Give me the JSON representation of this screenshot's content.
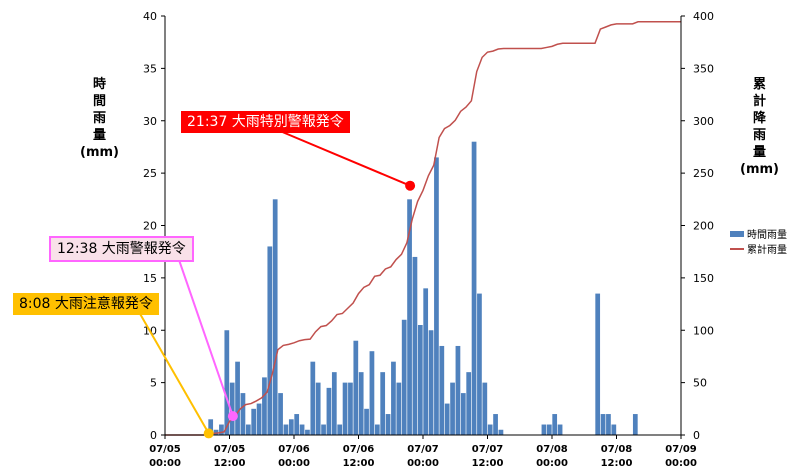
{
  "labels": {
    "left_axis": [
      "時",
      "間",
      "雨",
      "量",
      "(mm)"
    ],
    "right_axis": [
      "累",
      "計",
      "降",
      "雨",
      "量",
      "(mm)"
    ]
  },
  "legend": {
    "bar": "時間雨量",
    "line": "累計雨量"
  },
  "annotations": {
    "red": "21:37 大雨特別警報発令",
    "pink": "12:38 大雨警報発令",
    "orange": "8:08 大雨注意報発令"
  },
  "colors": {
    "bar": "#4F81BD",
    "line": "#C0504D",
    "red": "#FF0000",
    "pink": "#FF66FF",
    "orange": "#FFC000"
  },
  "chart_data": {
    "type": "bar",
    "x_ticks": [
      [
        "07/05",
        "00:00"
      ],
      [
        "07/05",
        "12:00"
      ],
      [
        "07/06",
        "00:00"
      ],
      [
        "07/06",
        "12:00"
      ],
      [
        "07/07",
        "00:00"
      ],
      [
        "07/07",
        "12:00"
      ],
      [
        "07/08",
        "00:00"
      ],
      [
        "07/08",
        "12:00"
      ],
      [
        "07/09",
        "00:00"
      ]
    ],
    "x_range_hours": [
      0,
      96
    ],
    "y_left": {
      "ylim": [
        0,
        40
      ],
      "ticks": [
        0,
        5,
        10,
        15,
        20,
        25,
        30,
        35,
        40
      ]
    },
    "y_right": {
      "ylim": [
        0,
        400
      ],
      "ticks": [
        0,
        50,
        100,
        150,
        200,
        250,
        300,
        350,
        400
      ]
    },
    "series": [
      {
        "name": "時間雨量",
        "axis": "left",
        "values": [
          0,
          0,
          0,
          0,
          0,
          0,
          0,
          0,
          1.5,
          0.5,
          1,
          10,
          5,
          7,
          4,
          1,
          2.5,
          3,
          5.5,
          18,
          22.5,
          4,
          1,
          1.5,
          2,
          1,
          0.5,
          7,
          5,
          1,
          4.5,
          6,
          1,
          5,
          5,
          9,
          6,
          2.5,
          8,
          1,
          6,
          2,
          7,
          5,
          11,
          22.5,
          17,
          10.5,
          14,
          10,
          26.5,
          8.5,
          3,
          5,
          8.5,
          4,
          6,
          28,
          13.5,
          5,
          1,
          2,
          0.5,
          0,
          0,
          0,
          0,
          0,
          0,
          0,
          1,
          1,
          2,
          1,
          0,
          0,
          0,
          0,
          0,
          0,
          13.5,
          2,
          2,
          1,
          0,
          0,
          0,
          2,
          0,
          0,
          0,
          0,
          0,
          0,
          0,
          0
        ]
      },
      {
        "name": "累計雨量",
        "axis": "right",
        "values": [
          0,
          0,
          0,
          0,
          0,
          0,
          0,
          0,
          1.5,
          2,
          3,
          13,
          18,
          25,
          29,
          30,
          32.5,
          35.5,
          41,
          59,
          81.5,
          85.5,
          86.5,
          88,
          90,
          91,
          91.5,
          98.5,
          103.5,
          104.5,
          109,
          115,
          116,
          121,
          126,
          135,
          141,
          143.5,
          151.5,
          152.5,
          158.5,
          160.5,
          167.5,
          172.5,
          183.5,
          206,
          223,
          233.5,
          247.5,
          257.5,
          284,
          292.5,
          295.5,
          300.5,
          309,
          313,
          319,
          347,
          360.5,
          365.5,
          366.5,
          368.5,
          369,
          369,
          369,
          369,
          369,
          369,
          369,
          369,
          370,
          371,
          373,
          374,
          374,
          374,
          374,
          374,
          374,
          374,
          387.5,
          389.5,
          391.5,
          392.5,
          392.5,
          392.5,
          392.5,
          394.5,
          394.5,
          394.5,
          394.5,
          394.5,
          394.5,
          394.5,
          394.5,
          394.5
        ]
      }
    ],
    "markers": [
      {
        "hour": 8.13,
        "y_right": 1.5,
        "color": "#FFC000"
      },
      {
        "hour": 12.63,
        "y_right": 18,
        "color": "#FF66FF"
      },
      {
        "hour": 45.6,
        "y_right": 238,
        "color": "#FF0000"
      }
    ],
    "grid": false,
    "legend_placement": "right"
  }
}
